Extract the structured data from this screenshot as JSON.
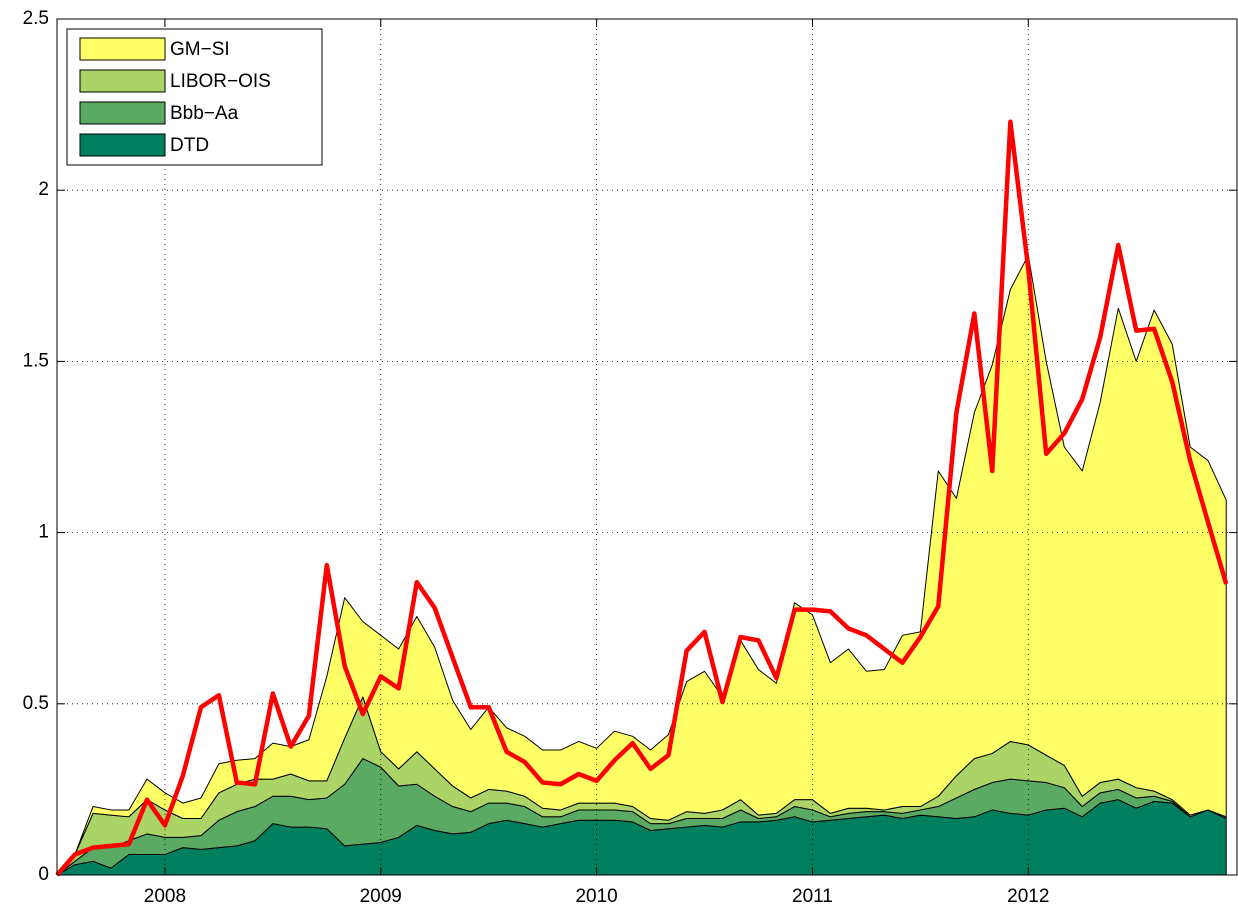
{
  "chart_data": {
    "type": "area",
    "stacked": true,
    "x": [
      2007.5,
      2007.583,
      2007.667,
      2007.75,
      2007.833,
      2007.917,
      2008,
      2008.083,
      2008.167,
      2008.25,
      2008.333,
      2008.417,
      2008.5,
      2008.583,
      2008.667,
      2008.75,
      2008.833,
      2008.917,
      2009,
      2009.083,
      2009.167,
      2009.25,
      2009.333,
      2009.417,
      2009.5,
      2009.583,
      2009.667,
      2009.75,
      2009.833,
      2009.917,
      2010,
      2010.083,
      2010.167,
      2010.25,
      2010.333,
      2010.417,
      2010.5,
      2010.583,
      2010.667,
      2010.75,
      2010.833,
      2010.917,
      2011,
      2011.083,
      2011.167,
      2011.25,
      2011.333,
      2011.417,
      2011.5,
      2011.583,
      2011.667,
      2011.75,
      2011.833,
      2011.917,
      2012,
      2012.083,
      2012.167,
      2012.25,
      2012.333,
      2012.417,
      2012.5,
      2012.583,
      2012.667,
      2012.75,
      2012.833,
      2012.917
    ],
    "series": [
      {
        "name": "DTD",
        "color": "#007f5f",
        "values": [
          0,
          0.03,
          0.04,
          0.02,
          0.06,
          0.06,
          0.06,
          0.08,
          0.075,
          0.08,
          0.085,
          0.1,
          0.15,
          0.14,
          0.14,
          0.135,
          0.085,
          0.09,
          0.095,
          0.11,
          0.145,
          0.13,
          0.12,
          0.125,
          0.15,
          0.16,
          0.15,
          0.14,
          0.15,
          0.16,
          0.16,
          0.16,
          0.155,
          0.13,
          0.135,
          0.14,
          0.145,
          0.14,
          0.155,
          0.155,
          0.16,
          0.17,
          0.155,
          0.16,
          0.165,
          0.17,
          0.175,
          0.165,
          0.175,
          0.17,
          0.165,
          0.17,
          0.19,
          0.18,
          0.175,
          0.19,
          0.195,
          0.17,
          0.21,
          0.22,
          0.195,
          0.215,
          0.21,
          0.17,
          0.19,
          0.165
        ]
      },
      {
        "name": "Bbb−Aa",
        "color": "#5aaa64",
        "values": [
          0,
          0.01,
          0.04,
          0.06,
          0.04,
          0.06,
          0.05,
          0.03,
          0.04,
          0.08,
          0.1,
          0.1,
          0.08,
          0.09,
          0.08,
          0.09,
          0.18,
          0.25,
          0.22,
          0.15,
          0.12,
          0.1,
          0.08,
          0.06,
          0.06,
          0.05,
          0.05,
          0.03,
          0.02,
          0.03,
          0.03,
          0.03,
          0.03,
          0.02,
          0.015,
          0.025,
          0.02,
          0.025,
          0.035,
          0.01,
          0.01,
          0.03,
          0.035,
          0.01,
          0.015,
          0.015,
          0.01,
          0.015,
          0.015,
          0.03,
          0.06,
          0.08,
          0.08,
          0.1,
          0.1,
          0.08,
          0.06,
          0.03,
          0.03,
          0.03,
          0.03,
          0.015,
          0.005,
          0,
          0,
          0
        ]
      },
      {
        "name": "LIBOR−OIS",
        "color": "#aad466",
        "values": [
          0,
          0.02,
          0.1,
          0.095,
          0.07,
          0.1,
          0.08,
          0.055,
          0.05,
          0.08,
          0.08,
          0.08,
          0.05,
          0.065,
          0.055,
          0.05,
          0.135,
          0.18,
          0.045,
          0.05,
          0.095,
          0.08,
          0.06,
          0.04,
          0.04,
          0.035,
          0.03,
          0.025,
          0.02,
          0.02,
          0.02,
          0.02,
          0.015,
          0.015,
          0.01,
          0.02,
          0.015,
          0.025,
          0.03,
          0.01,
          0.01,
          0.02,
          0.03,
          0.01,
          0.015,
          0.01,
          0.005,
          0.02,
          0.01,
          0.03,
          0.065,
          0.09,
          0.085,
          0.11,
          0.105,
          0.08,
          0.065,
          0.03,
          0.03,
          0.03,
          0.03,
          0.015,
          0.005,
          0.005,
          0,
          0.005
        ]
      },
      {
        "name": "GM−SI",
        "color": "#ffff66",
        "values": [
          0,
          0,
          0.02,
          0.015,
          0.02,
          0.06,
          0.05,
          0.045,
          0.06,
          0.085,
          0.07,
          0.06,
          0.105,
          0.08,
          0.12,
          0.305,
          0.41,
          0.22,
          0.34,
          0.35,
          0.395,
          0.355,
          0.25,
          0.2,
          0.24,
          0.185,
          0.175,
          0.17,
          0.175,
          0.18,
          0.16,
          0.21,
          0.205,
          0.2,
          0.25,
          0.38,
          0.415,
          0.33,
          0.465,
          0.425,
          0.38,
          0.575,
          0.54,
          0.44,
          0.465,
          0.4,
          0.41,
          0.5,
          0.51,
          0.95,
          0.81,
          1.01,
          1.135,
          1.32,
          1.43,
          1.15,
          0.93,
          0.95,
          1.11,
          1.375,
          1.245,
          1.405,
          1.33,
          1.075,
          1.02,
          0.925
        ]
      },
      {
        "type": "line",
        "color": "#ff0000",
        "values": [
          0,
          0.06,
          0.08,
          0.085,
          0.09,
          0.22,
          0.145,
          0.29,
          0.49,
          0.525,
          0.27,
          0.265,
          0.53,
          0.375,
          0.465,
          0.905,
          0.61,
          0.47,
          0.58,
          0.545,
          0.855,
          0.78,
          0.635,
          0.49,
          0.49,
          0.36,
          0.33,
          0.27,
          0.265,
          0.295,
          0.275,
          0.335,
          0.385,
          0.31,
          0.35,
          0.655,
          0.71,
          0.505,
          0.695,
          0.685,
          0.575,
          0.775,
          0.775,
          0.77,
          0.72,
          0.7,
          0.66,
          0.62,
          0.695,
          0.785,
          1.35,
          1.64,
          1.18,
          2.2,
          1.77,
          1.23,
          1.29,
          1.39,
          1.57,
          1.84,
          1.59,
          1.595,
          1.44,
          1.21,
          1.03,
          0.85
        ]
      }
    ],
    "xlim": [
      2007.5,
      2012.967
    ],
    "xticks": [
      2008,
      2009,
      2010,
      2011,
      2012
    ],
    "ylim": [
      0,
      2.5
    ],
    "yticks": [
      0,
      0.5,
      1,
      1.5,
      2,
      2.5
    ],
    "grid": true,
    "legend": "upper left"
  }
}
